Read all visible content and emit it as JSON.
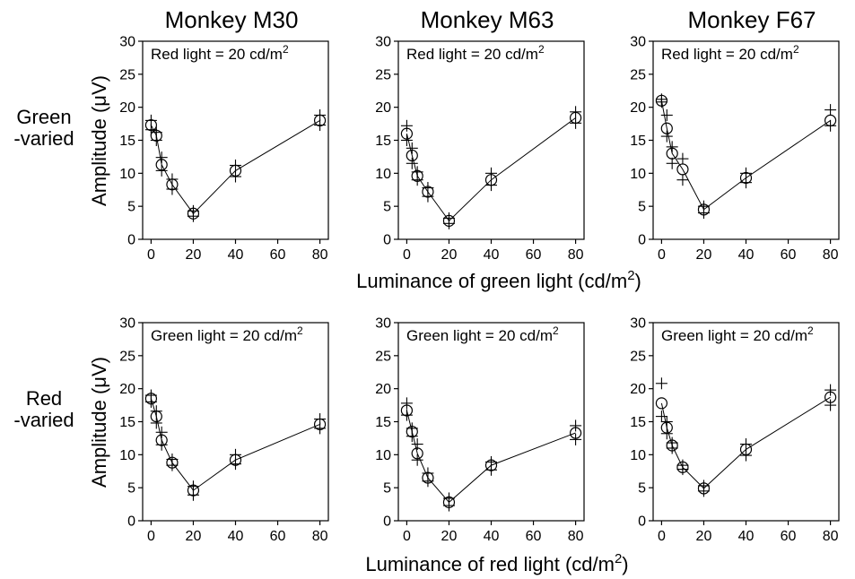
{
  "figure": {
    "column_titles": [
      "Monkey M30",
      "Monkey M63",
      "Monkey F67"
    ],
    "row_labels": [
      {
        "line1": "Green",
        "line2": "-varied"
      },
      {
        "line1": "Red",
        "line2": "-varied"
      }
    ],
    "ylabel": "Amplitude (μV)",
    "xlabels": [
      {
        "main": "Luminance of green light (cd/m",
        "sup": "2",
        "end": ")"
      },
      {
        "main": "Luminance of red light (cd/m",
        "sup": "2",
        "end": ")"
      }
    ]
  },
  "chart_data": [
    {
      "type": "scatter",
      "panel": "Monkey M30 / Green-varied",
      "title": "Monkey M30",
      "annotation": {
        "text": "Red light = 20 cd/m",
        "sup": "2"
      },
      "xlabel": "Luminance of green light (cd/m2)",
      "ylabel": "Amplitude (μV)",
      "xlim": [
        -4,
        84
      ],
      "ylim": [
        0,
        30
      ],
      "xticks": [
        0,
        20,
        40,
        60,
        80
      ],
      "yticks": [
        0,
        5,
        10,
        15,
        20,
        25,
        30
      ],
      "grid": false,
      "mean_x": [
        0,
        2.5,
        5,
        10,
        20,
        40,
        80
      ],
      "mean_y": [
        17.3,
        15.7,
        11.3,
        8.3,
        3.9,
        10.4,
        18.0
      ],
      "individual_points": [
        [
          0,
          18.0
        ],
        [
          0,
          16.6
        ],
        [
          2.5,
          16.2
        ],
        [
          2.5,
          15.0
        ],
        [
          5,
          12.4
        ],
        [
          5,
          10.4
        ],
        [
          10,
          9.1
        ],
        [
          10,
          7.6
        ],
        [
          20,
          4.3
        ],
        [
          20,
          3.5
        ],
        [
          40,
          11.2
        ],
        [
          40,
          9.5
        ],
        [
          80,
          18.8
        ],
        [
          80,
          17.3
        ]
      ]
    },
    {
      "type": "scatter",
      "panel": "Monkey M63 / Green-varied",
      "title": "Monkey M63",
      "annotation": {
        "text": "Red light = 20 cd/m",
        "sup": "2"
      },
      "xlabel": "Luminance of green light (cd/m2)",
      "ylabel": "Amplitude (μV)",
      "xlim": [
        -4,
        84
      ],
      "ylim": [
        0,
        30
      ],
      "xticks": [
        0,
        20,
        40,
        60,
        80
      ],
      "yticks": [
        0,
        5,
        10,
        15,
        20,
        25,
        30
      ],
      "grid": false,
      "mean_x": [
        0,
        2.5,
        5,
        10,
        20,
        40,
        80
      ],
      "mean_y": [
        16.0,
        12.7,
        9.6,
        7.2,
        2.8,
        9.0,
        18.4
      ],
      "individual_points": [
        [
          0,
          17.2
        ],
        [
          0,
          15.0
        ],
        [
          2.5,
          13.8
        ],
        [
          2.5,
          11.5
        ],
        [
          5,
          10.2
        ],
        [
          5,
          9.0
        ],
        [
          10,
          7.8
        ],
        [
          10,
          6.5
        ],
        [
          20,
          3.2
        ],
        [
          20,
          2.4
        ],
        [
          40,
          10.0
        ],
        [
          40,
          8.2
        ],
        [
          80,
          19.3
        ],
        [
          80,
          17.6
        ]
      ]
    },
    {
      "type": "scatter",
      "panel": "Monkey F67 / Green-varied",
      "title": "Monkey F67",
      "annotation": {
        "text": "Red light = 20 cd/m",
        "sup": "2"
      },
      "xlabel": "Luminance of green light (cd/m2)",
      "ylabel": "Amplitude (μV)",
      "xlim": [
        -4,
        84
      ],
      "ylim": [
        0,
        30
      ],
      "xticks": [
        0,
        20,
        40,
        60,
        80
      ],
      "yticks": [
        0,
        5,
        10,
        15,
        20,
        25,
        30
      ],
      "grid": false,
      "mean_x": [
        0,
        2.5,
        5,
        10,
        20,
        40,
        80
      ],
      "mean_y": [
        21.0,
        16.8,
        13.0,
        10.6,
        4.5,
        9.3,
        18.0
      ],
      "individual_points": [
        [
          0,
          21.2
        ],
        [
          0,
          20.8
        ],
        [
          2.5,
          18.8
        ],
        [
          2.5,
          15.6
        ],
        [
          5,
          14.0
        ],
        [
          5,
          11.5
        ],
        [
          10,
          12.2
        ],
        [
          10,
          9.0
        ],
        [
          20,
          5.0
        ],
        [
          20,
          4.0
        ],
        [
          40,
          10.0
        ],
        [
          40,
          8.6
        ],
        [
          80,
          19.6
        ],
        [
          80,
          17.2
        ]
      ]
    },
    {
      "type": "scatter",
      "panel": "Monkey M30 / Red-varied",
      "annotation": {
        "text": "Green light = 20 cd/m",
        "sup": "2"
      },
      "xlabel": "Luminance of red light (cd/m2)",
      "ylabel": "Amplitude (μV)",
      "xlim": [
        -4,
        84
      ],
      "ylim": [
        0,
        30
      ],
      "xticks": [
        0,
        20,
        40,
        60,
        80
      ],
      "yticks": [
        0,
        5,
        10,
        15,
        20,
        25,
        30
      ],
      "grid": false,
      "mean_x": [
        0,
        2.5,
        5,
        10,
        20,
        40,
        80
      ],
      "mean_y": [
        18.5,
        15.8,
        12.2,
        8.8,
        4.6,
        9.2,
        14.6
      ],
      "individual_points": [
        [
          0,
          19.0
        ],
        [
          0,
          18.0
        ],
        [
          2.5,
          16.6
        ],
        [
          2.5,
          14.8
        ],
        [
          5,
          13.4
        ],
        [
          5,
          11.5
        ],
        [
          10,
          9.3
        ],
        [
          10,
          8.4
        ],
        [
          20,
          5.2
        ],
        [
          20,
          3.9
        ],
        [
          40,
          10.0
        ],
        [
          40,
          8.6
        ],
        [
          80,
          15.4
        ],
        [
          80,
          14.0
        ]
      ]
    },
    {
      "type": "scatter",
      "panel": "Monkey M63 / Red-varied",
      "annotation": {
        "text": "Green light = 20 cd/m",
        "sup": "2"
      },
      "xlabel": "Luminance of red light (cd/m2)",
      "ylabel": "Amplitude (μV)",
      "xlim": [
        -4,
        84
      ],
      "ylim": [
        0,
        30
      ],
      "xticks": [
        0,
        20,
        40,
        60,
        80
      ],
      "yticks": [
        0,
        5,
        10,
        15,
        20,
        25,
        30
      ],
      "grid": false,
      "mean_x": [
        0,
        2.5,
        5,
        10,
        20,
        40,
        80
      ],
      "mean_y": [
        16.7,
        13.5,
        10.2,
        6.5,
        2.8,
        8.4,
        13.3
      ],
      "individual_points": [
        [
          0,
          17.8
        ],
        [
          0,
          16.0
        ],
        [
          2.5,
          14.0
        ],
        [
          2.5,
          12.8
        ],
        [
          5,
          11.6
        ],
        [
          5,
          9.2
        ],
        [
          10,
          7.2
        ],
        [
          10,
          6.0
        ],
        [
          20,
          3.4
        ],
        [
          20,
          2.3
        ],
        [
          40,
          8.9
        ],
        [
          40,
          7.7
        ],
        [
          80,
          14.4
        ],
        [
          80,
          12.3
        ]
      ]
    },
    {
      "type": "scatter",
      "panel": "Monkey F67 / Red-varied",
      "annotation": {
        "text": "Green light = 20 cd/m",
        "sup": "2"
      },
      "xlabel": "Luminance of red light (cd/m2)",
      "ylabel": "Amplitude (μV)",
      "xlim": [
        -4,
        84
      ],
      "ylim": [
        0,
        30
      ],
      "xticks": [
        0,
        20,
        40,
        60,
        80
      ],
      "yticks": [
        0,
        5,
        10,
        15,
        20,
        25,
        30
      ],
      "grid": false,
      "mean_x": [
        0,
        2.5,
        5,
        10,
        20,
        40,
        80
      ],
      "mean_y": [
        17.8,
        14.1,
        11.4,
        8.1,
        4.9,
        10.8,
        18.7
      ],
      "individual_points": [
        [
          0,
          20.8
        ],
        [
          0,
          15.8
        ],
        [
          2.5,
          15.0
        ],
        [
          2.5,
          13.2
        ],
        [
          5,
          11.8
        ],
        [
          5,
          11.0
        ],
        [
          10,
          8.4
        ],
        [
          10,
          7.8
        ],
        [
          20,
          5.3
        ],
        [
          20,
          4.5
        ],
        [
          40,
          11.6
        ],
        [
          40,
          9.9
        ],
        [
          80,
          19.8
        ],
        [
          80,
          17.5
        ]
      ]
    }
  ]
}
